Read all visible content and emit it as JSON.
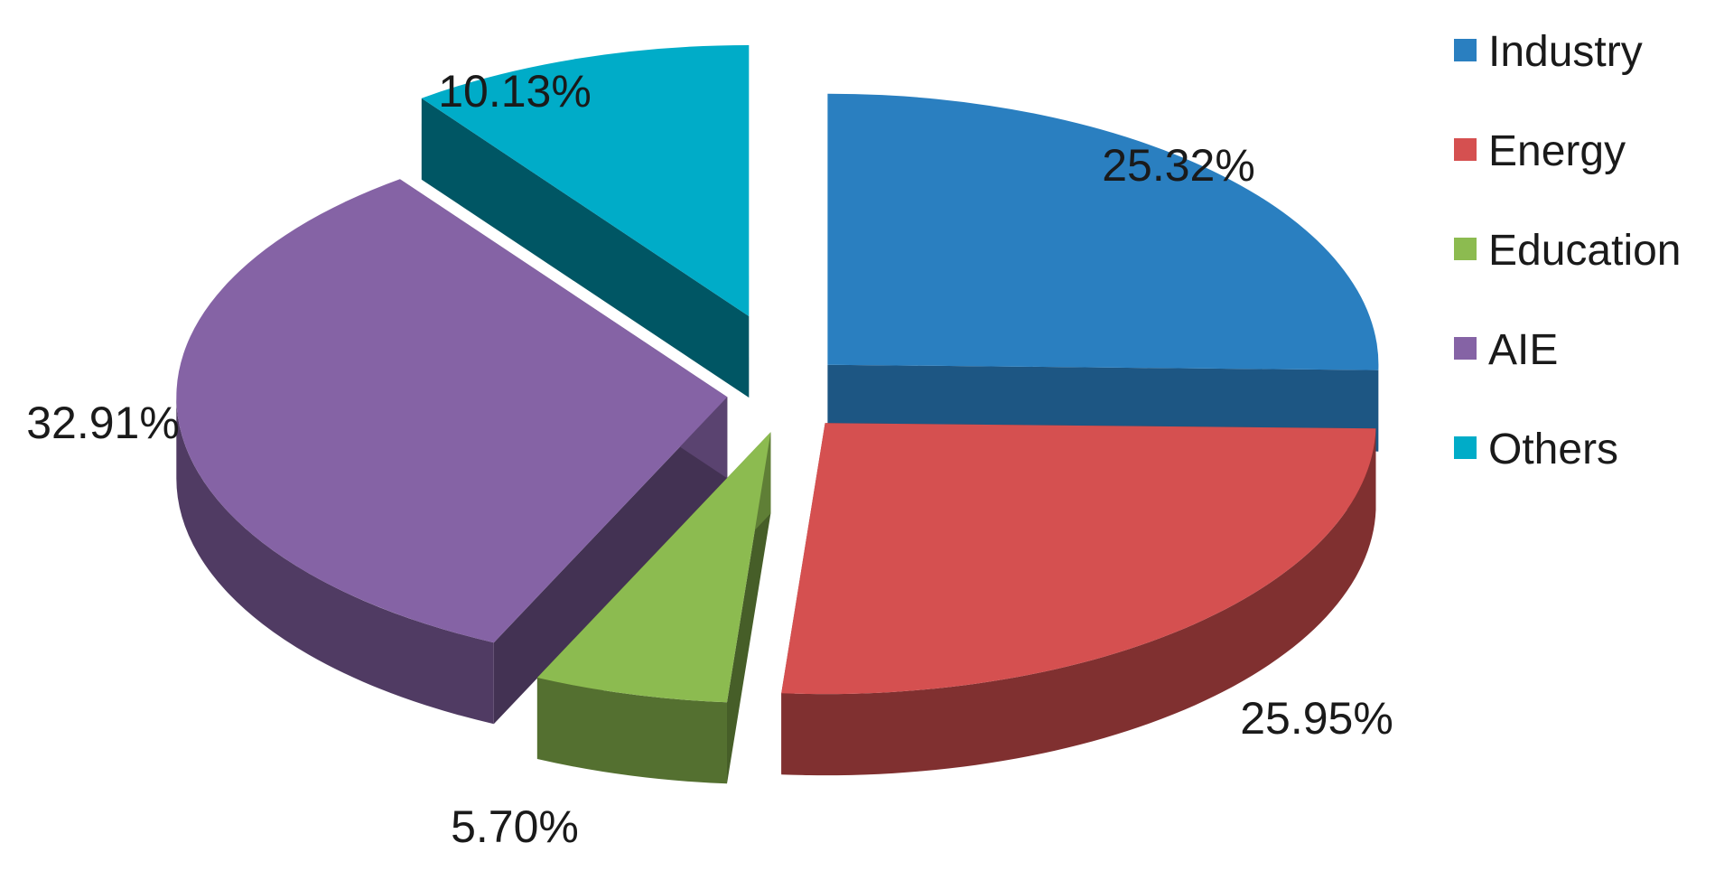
{
  "chart_data": {
    "type": "pie",
    "variant": "3d-exploded",
    "title": "",
    "categories": [
      "Industry",
      "Energy",
      "Education",
      "AIE",
      "Others"
    ],
    "values": [
      25.32,
      25.95,
      5.7,
      32.91,
      10.13
    ],
    "unit": "%",
    "data_labels": [
      "25.32%",
      "25.95%",
      "5.70%",
      "32.91%",
      "10.13%"
    ],
    "colors": [
      "#2a7fc0",
      "#d55050",
      "#8cbb50",
      "#8563a5",
      "#00acc8"
    ],
    "legend": {
      "position": "right",
      "entries": [
        "Industry",
        "Energy",
        "Education",
        "AIE",
        "Others"
      ]
    }
  }
}
